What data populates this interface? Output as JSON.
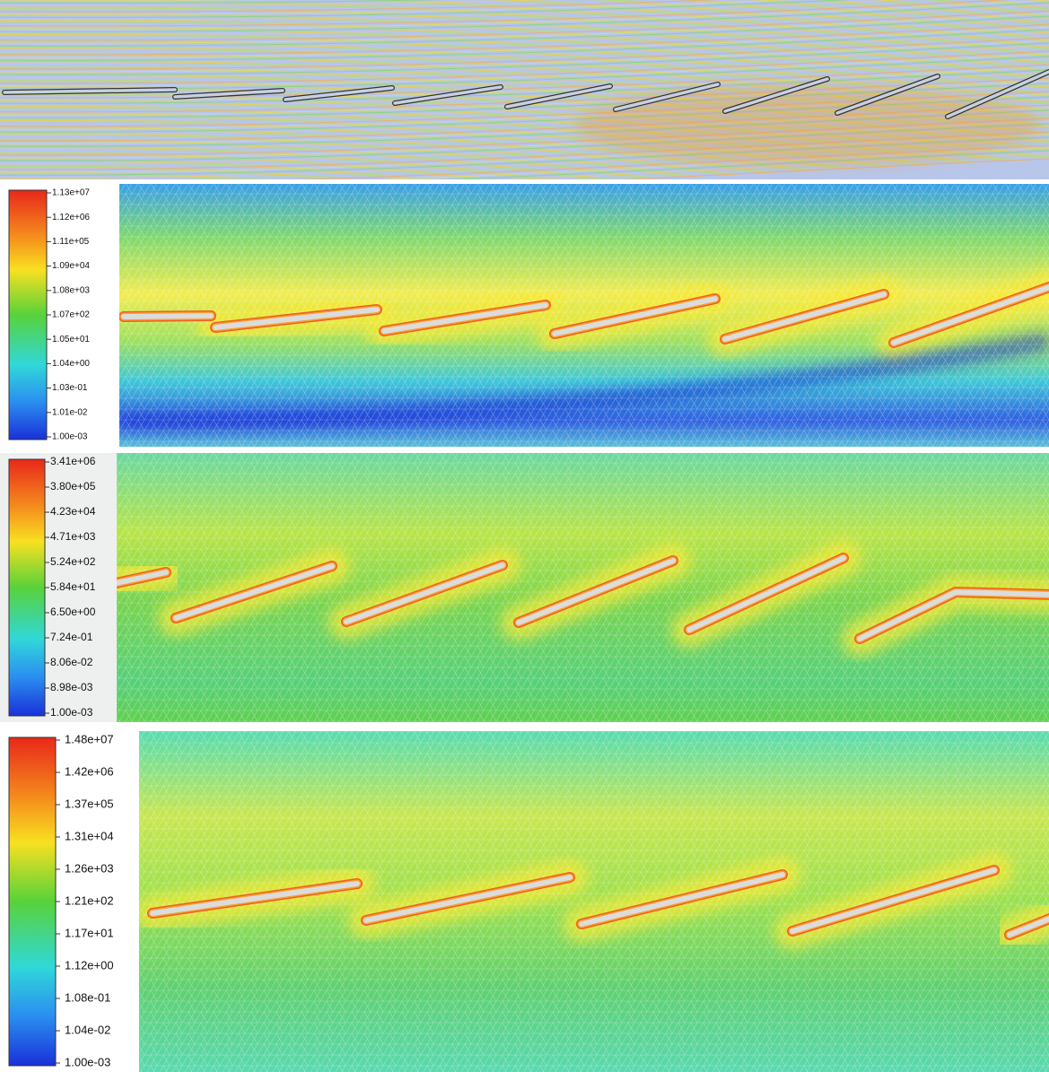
{
  "colorbars": [
    {
      "labels": [
        "1.13e+07",
        "1.12e+06",
        "1.11e+05",
        "1.09e+04",
        "1.08e+03",
        "1.07e+02",
        "1.05e+01",
        "1.04e+00",
        "1.03e-01",
        "1.01e-02",
        "1.00e-03"
      ]
    },
    {
      "labels": [
        "3.41e+06",
        "3.80e+05",
        "4.23e+04",
        "4.71e+03",
        "5.24e+02",
        "5.84e+01",
        "6.50e+00",
        "7.24e-01",
        "8.06e-02",
        "8.98e-03",
        "1.00e-03"
      ]
    },
    {
      "labels": [
        "1.48e+07",
        "1.42e+06",
        "1.37e+05",
        "1.31e+04",
        "1.26e+03",
        "1.21e+02",
        "1.17e+01",
        "1.12e+00",
        "1.08e-01",
        "1.04e-02",
        "1.00e-03"
      ]
    }
  ]
}
